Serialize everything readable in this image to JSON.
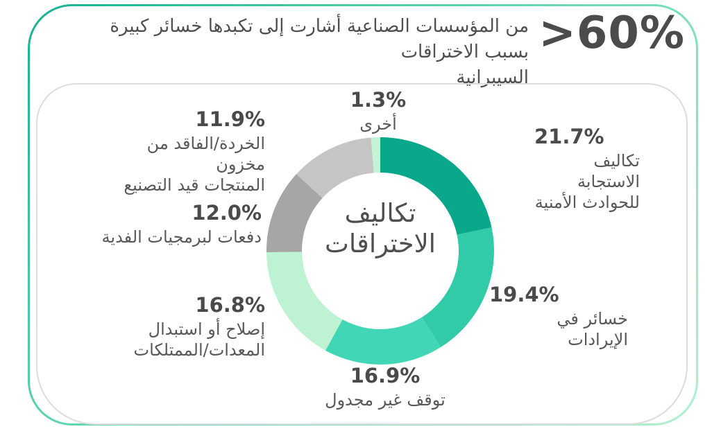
{
  "banner": {
    "stat": ">60%",
    "line1": "من المؤسسات الصناعية أشارت إلى تكبدها خسائر كبيرة بسبب الاختراقات",
    "line2": "السيبرانية"
  },
  "chart_data": {
    "type": "pie",
    "donut": true,
    "start": "top",
    "direction": "clockwise",
    "center_title": [
      "تكاليف",
      "الاختراقات"
    ],
    "segments": [
      {
        "pct": "21.7%",
        "value": 21.7,
        "color": "#0aa88b",
        "label": "تكاليف الاستجابة للحوادث الأمنية",
        "lines": [
          "تكاليف الاستجابة",
          "للحوادث الأمنية"
        ]
      },
      {
        "pct": "19.4%",
        "value": 19.4,
        "color": "#31cba8",
        "label": "خسائر في الإيرادات",
        "lines": [
          "خسائر في",
          "الإيرادات"
        ]
      },
      {
        "pct": "16.9%",
        "value": 16.9,
        "color": "#41d6b5",
        "label": "توقف غير مجدول",
        "lines": [
          "توقف غير مجدول"
        ]
      },
      {
        "pct": "16.8%",
        "value": 16.8,
        "color": "#bdf2d3",
        "label": "إصلاح أو استبدال المعدات/الممتلكات",
        "lines": [
          "إصلاح أو استبدال",
          "المعدات/الممتلكات"
        ]
      },
      {
        "pct": "12.0%",
        "value": 12.0,
        "color": "#a6a6a6",
        "label": "دفعات لبرمجيات الفدية",
        "lines": [
          "دفعات لبرمجيات الفدية"
        ]
      },
      {
        "pct": "11.9%",
        "value": 11.9,
        "color": "#c5c5c5",
        "label": "الخردة/الفاقد من مخزون المنتجات قيد التصنيع",
        "lines": [
          "الخردة/الفاقد من مخزون",
          "المنتجات قيد التصنيع"
        ]
      },
      {
        "pct": "1.3%",
        "value": 1.3,
        "color": "#c2f4d5",
        "label": "أخرى",
        "lines": [
          "أخرى"
        ]
      }
    ],
    "colors": {
      "frame_gradient_start": "#16b192",
      "frame_gradient_end": "#b2f0cf",
      "inner_frame_border": "#dcdcdc",
      "text_dark": "#4a4a4a",
      "text_label": "#585858"
    }
  }
}
